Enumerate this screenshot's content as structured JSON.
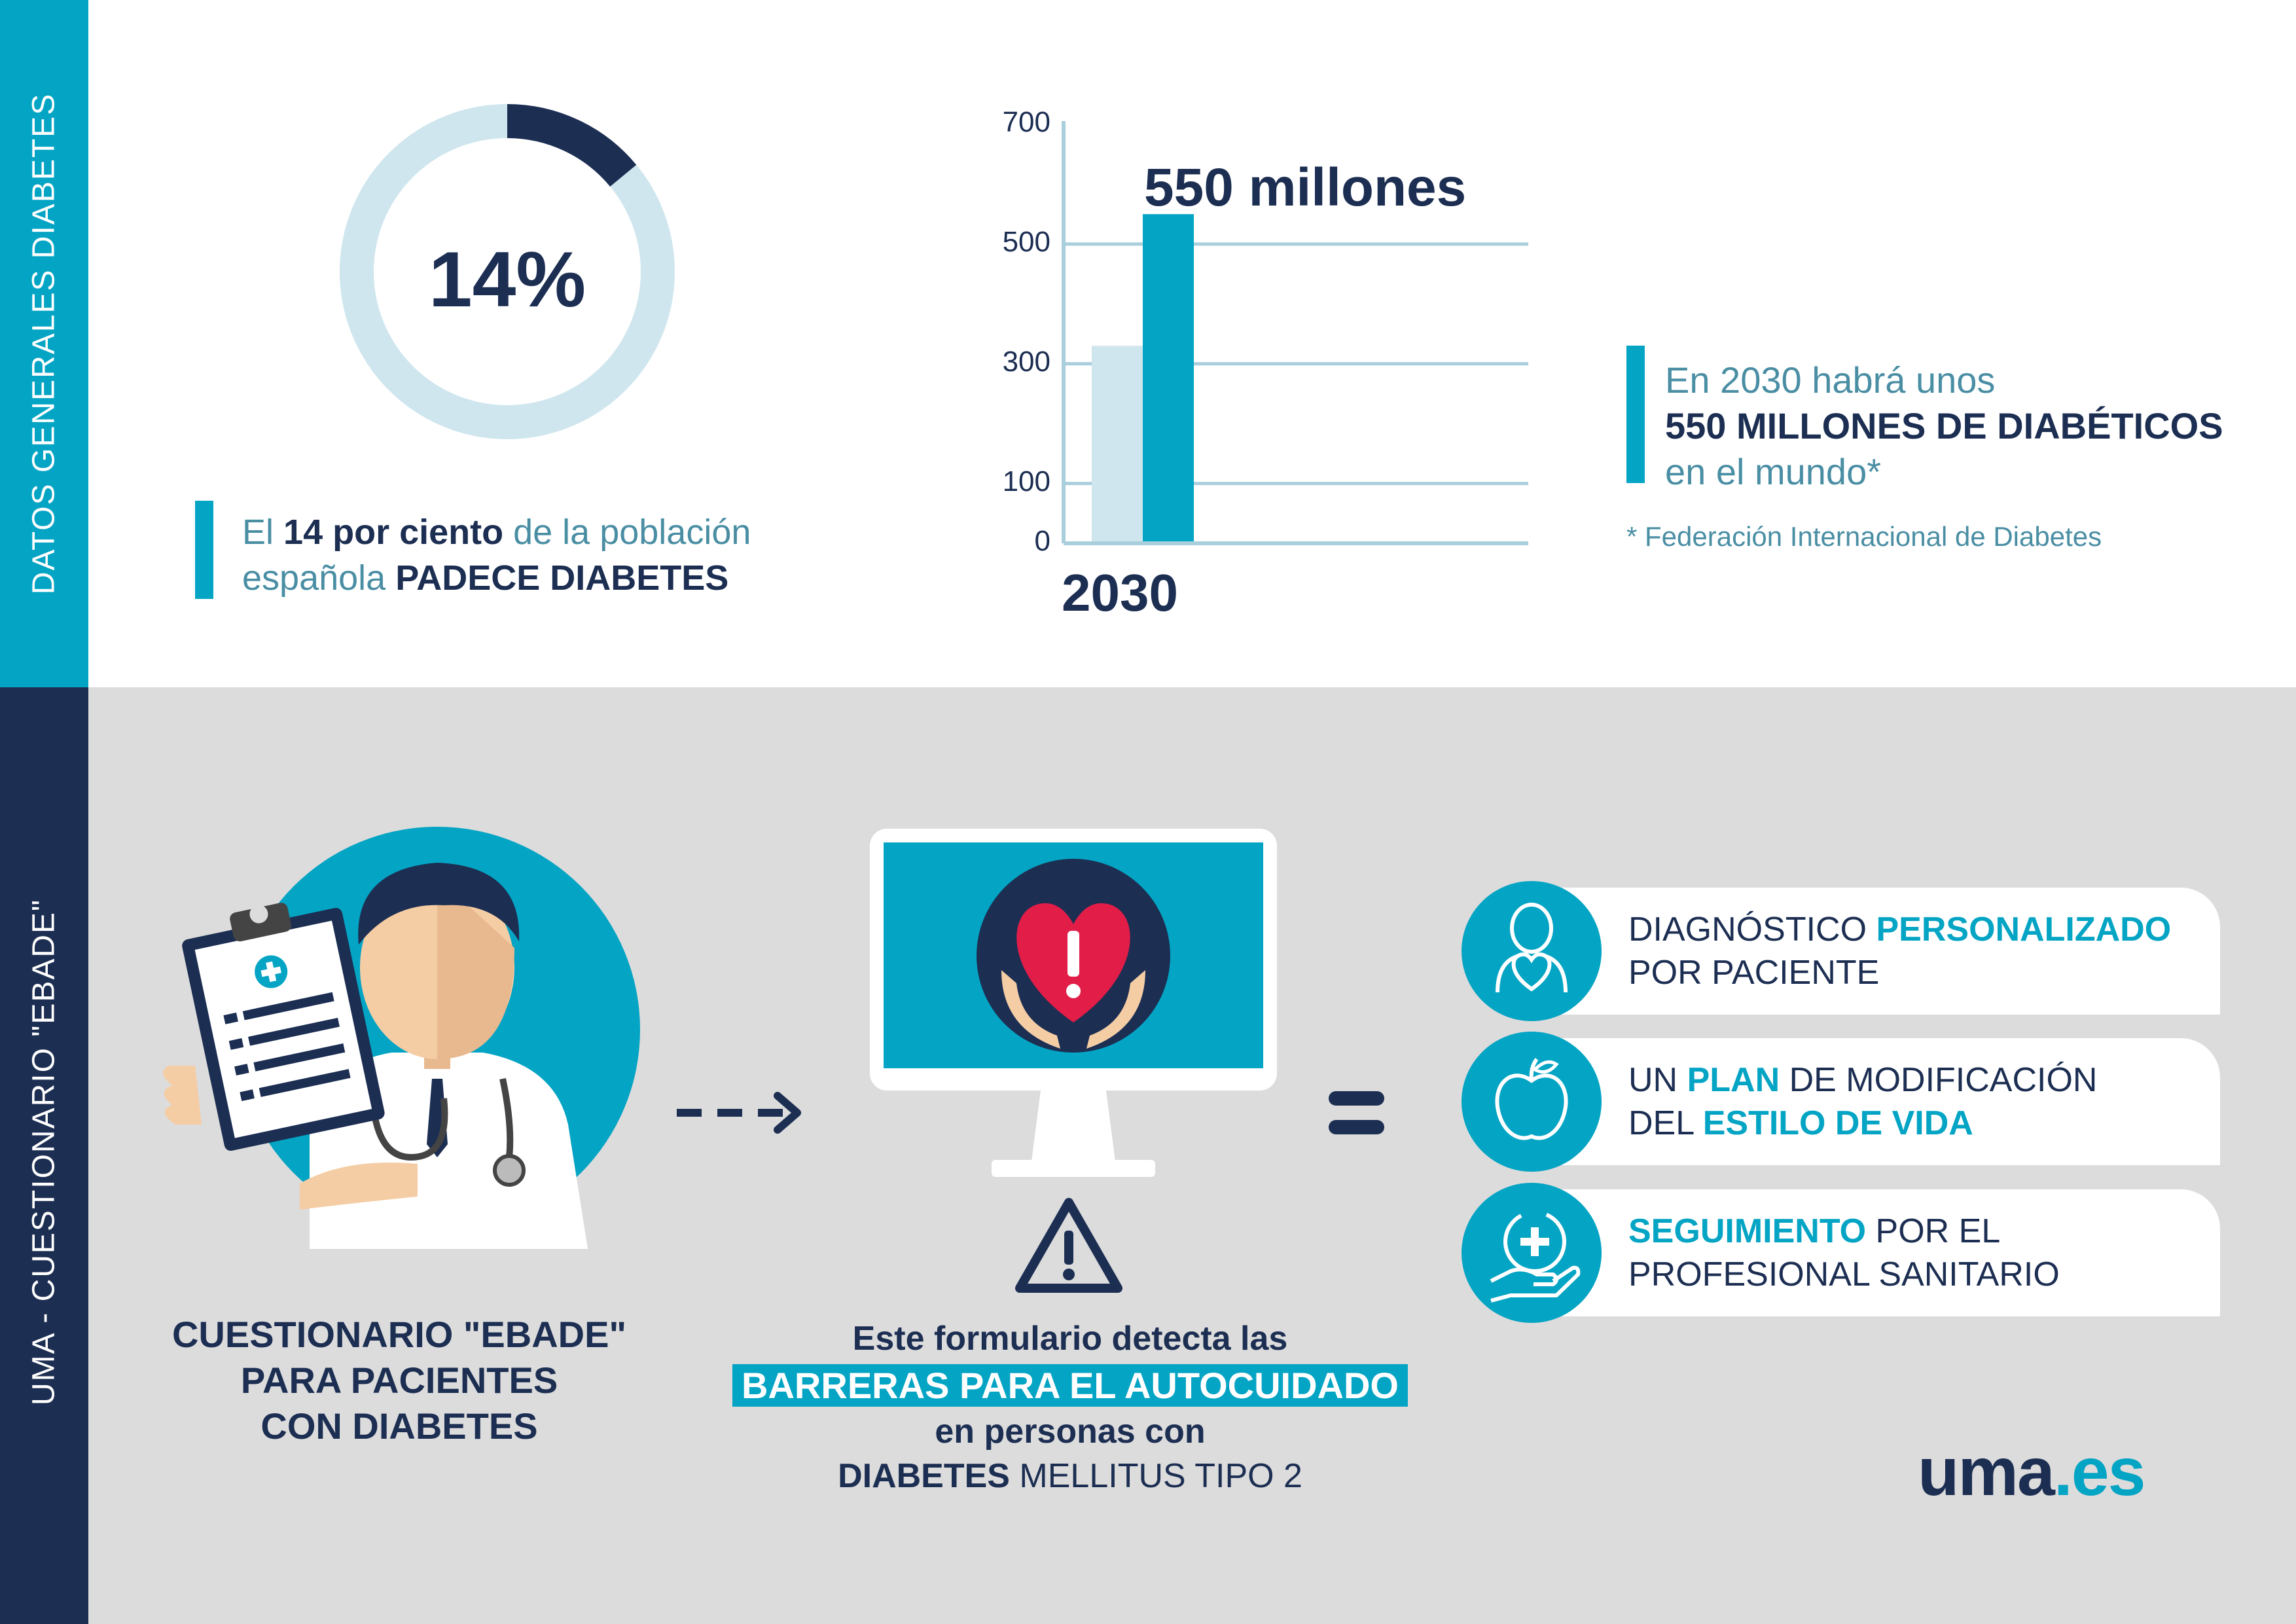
{
  "sidebar": {
    "top_label": "DATOS GENERALES DIABETES",
    "bottom_label": "UMA - CUESTIONARIO \"EBADE\""
  },
  "colors": {
    "teal": "#04a4c4",
    "navy": "#1c2e52",
    "light": "#cfe6ee",
    "gray": "#dcdcdc"
  },
  "stat": {
    "percent_label": "14%",
    "percent_value": 14,
    "caption": {
      "line1_pre": "El ",
      "line1_bold": "14 por ciento",
      "line1_post": " de la población",
      "line2_pre": "española ",
      "line2_bold": "PADECE DIABETES"
    }
  },
  "chart_data": {
    "type": "bar",
    "categories": [
      "2030"
    ],
    "series": [
      {
        "values": [
          330
        ]
      },
      {
        "values": [
          550
        ]
      }
    ],
    "yticks": [
      "0",
      "100",
      "300",
      "500",
      "700"
    ],
    "ylim": [
      0,
      700
    ],
    "annotation": "550 millones",
    "series_colors": [
      "#cfe6ee",
      "#04a4c4"
    ],
    "grid": true
  },
  "projection": {
    "line1": "En 2030 habrá unos",
    "line2": "550 MILLONES DE DIABÉTICOS",
    "line3": "en el mundo*",
    "footnote": "* Federación Internacional de Diabetes"
  },
  "questionnaire": {
    "line1": "CUESTIONARIO \"EBADE\"",
    "line2": "PARA PACIENTES",
    "line3": "CON DIABETES"
  },
  "detect": {
    "line1": "Este formulario detecta las",
    "highlight": "BARRERAS PARA EL AUTOCUIDADO",
    "line3": "en personas con",
    "line4_bold": "DIABETES",
    "line4_rest": " MELLITUS TIPO 2"
  },
  "results": [
    {
      "icon": "person-heart-icon",
      "l1_pre": "DIAGNÓSTICO ",
      "l1_hl": "PERSONALIZADO",
      "l1_post": "",
      "l2_pre": "POR PACIENTE",
      "l2_hl": ""
    },
    {
      "icon": "apple-icon",
      "l1_pre": "UN ",
      "l1_hl": "PLAN",
      "l1_post": " DE MODIFICACIÓN",
      "l2_pre": "DEL ",
      "l2_hl": "ESTILO DE VIDA"
    },
    {
      "icon": "medical-care-icon",
      "l1_pre": "",
      "l1_hl": "SEGUIMIENTO",
      "l1_post": " POR EL",
      "l2_pre": "PROFESIONAL SANITARIO",
      "l2_hl": ""
    }
  ],
  "logo": {
    "part1": "uma",
    "part2": ".es"
  }
}
